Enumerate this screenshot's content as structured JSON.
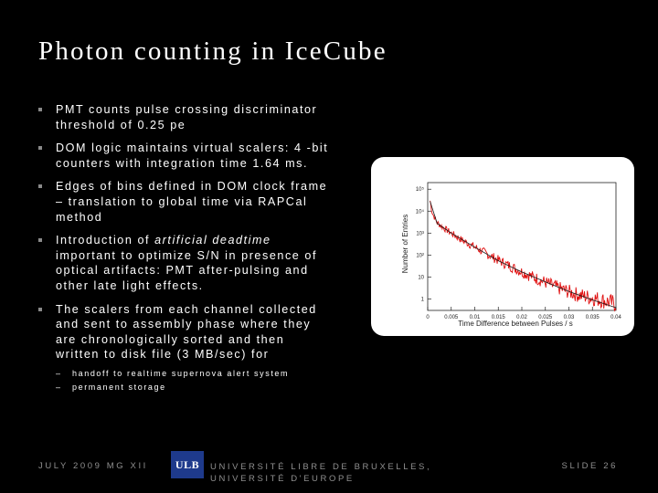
{
  "slide": {
    "title": "Photon counting in IceCube",
    "bullets": [
      {
        "text": "PMT counts pulse crossing discriminator threshold of 0.25 pe"
      },
      {
        "text": "DOM logic maintains virtual scalers: 4 -bit counters with integration time 1.64 ms."
      },
      {
        "text": "Edges of bins defined in DOM clock frame – translation to global time via RAPCal method"
      },
      {
        "pre": "Introduction of ",
        "em": "artificial deadtime",
        "post": " important to optimize S/N in presence of optical artifacts: PMT after-pulsing and other late light effects."
      },
      {
        "text": "The scalers from each channel collected and sent to assembly phase where they are chronologically sorted and then written to disk file (3 MB/sec) for"
      }
    ],
    "sub_bullets": [
      {
        "dash": "–",
        "text": "handoff to realtime supernova alert system"
      },
      {
        "dash": "–",
        "text": "permanent storage"
      }
    ]
  },
  "footer": {
    "left": "JULY 2009 MG XII",
    "logo": "ULB",
    "center": "UNIVERSITÉ LIBRE DE BRUXELLES, UNIVERSITÉ D'EUROPE",
    "right": "SLIDE 26"
  },
  "colors": {
    "background": "#000000",
    "text": "#ffffff",
    "footer": "#8f8f8f",
    "logo": "#1e3a8c",
    "series": "#e01010",
    "fit": "#1a1a1a"
  },
  "chart_data": {
    "type": "line",
    "title": "",
    "xlabel": "Time Difference between Pulses / s",
    "ylabel": "Number of Entries",
    "x_ticks": [
      "0",
      "0.005",
      "0.01",
      "0.015",
      "0.02",
      "0.025",
      "0.03",
      "0.035",
      "0.04"
    ],
    "y_ticks": [
      "1",
      "10",
      "10²",
      "10³",
      "10⁴",
      "10⁵"
    ],
    "xlim": [
      0,
      0.04
    ],
    "ylim": [
      0.3,
      200000
    ],
    "log_y": true,
    "series": [
      {
        "values_desc": "histogram",
        "x": [
          0.0005,
          0.001,
          0.002,
          0.003,
          0.004,
          0.005,
          0.007,
          0.01,
          0.013,
          0.016,
          0.02,
          0.024,
          0.028,
          0.032,
          0.036,
          0.04
        ],
        "y": [
          30000,
          8000,
          3000,
          2000,
          1400,
          1000,
          520,
          230,
          100,
          45,
          17,
          7,
          3,
          1.5,
          1,
          0.6
        ]
      }
    ],
    "fit": {
      "x": [
        0.0005,
        0.002,
        0.005,
        0.01,
        0.015,
        0.02,
        0.025,
        0.03,
        0.035,
        0.04
      ],
      "y": [
        28000,
        2800,
        1000,
        230,
        55,
        17,
        6,
        2.2,
        0.9,
        0.4
      ]
    },
    "grid": false,
    "legend": "none"
  }
}
